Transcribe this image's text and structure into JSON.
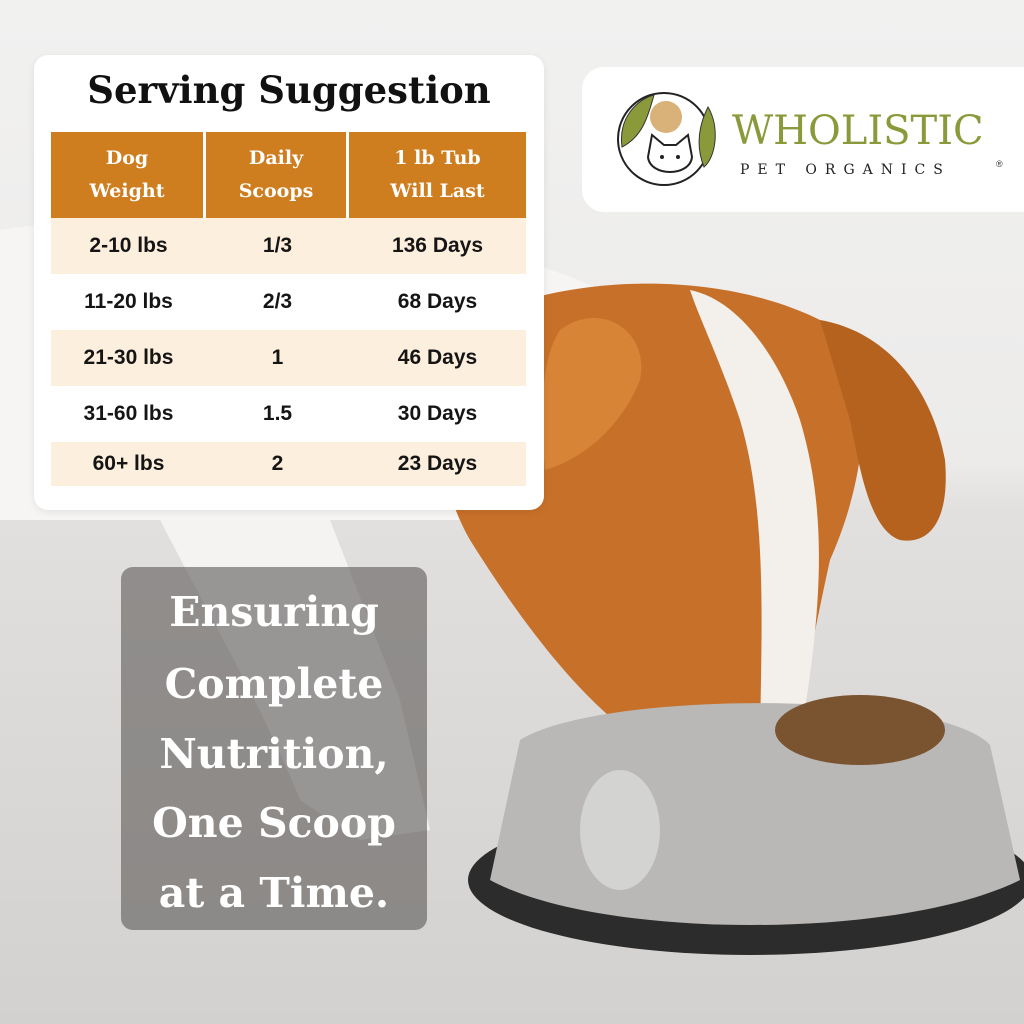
{
  "card": {
    "title": "Serving Suggestion",
    "headers": [
      [
        "Dog",
        "Weight"
      ],
      [
        "Daily",
        "Scoops"
      ],
      [
        "1 lb Tub",
        "Will Last"
      ]
    ],
    "rows": [
      [
        "2-10 lbs",
        "1/3",
        "136 Days"
      ],
      [
        "11-20 lbs",
        "2/3",
        "68 Days"
      ],
      [
        "21-30 lbs",
        "1",
        "46 Days"
      ],
      [
        "31-60 lbs",
        "1.5",
        "30 Days"
      ],
      [
        "60+ lbs",
        "2",
        "23 Days"
      ]
    ],
    "colors": {
      "header": "#cf7e1f",
      "alt_row": "#fdefdd"
    }
  },
  "logo": {
    "brand": "WHOLISTIC",
    "sub": "PET ORGANICS",
    "reg": "®",
    "icon": "dog-cat-leaf-logo",
    "color": "#8a9a3a"
  },
  "overlay": {
    "lines": [
      "Ensuring",
      "Complete",
      "Nutrition,",
      "One Scoop",
      "at a Time."
    ]
  }
}
